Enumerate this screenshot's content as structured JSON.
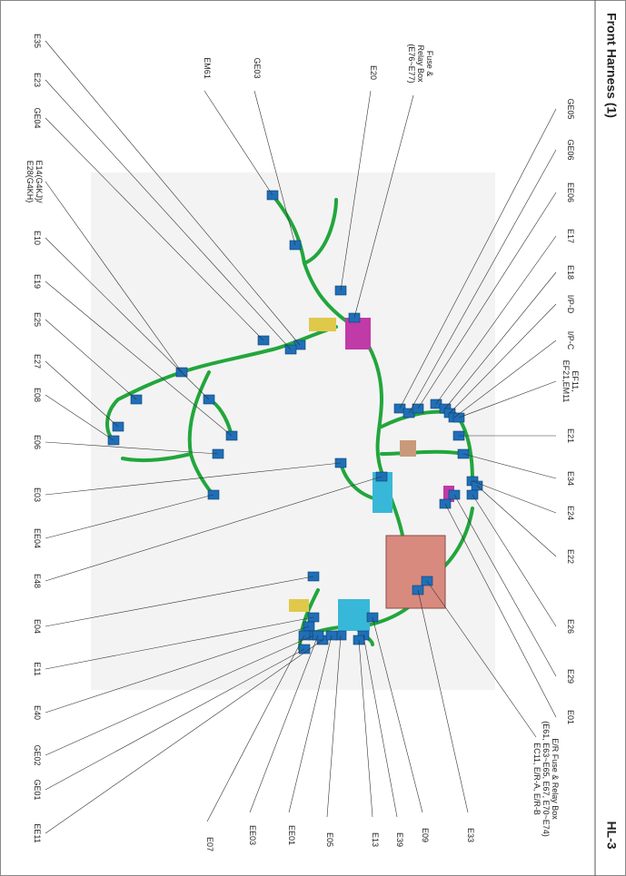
{
  "header": {
    "title": "Front Harness (1)",
    "page": "HL-3"
  },
  "labels": [
    {
      "lines": [
        "E35"
      ]
    },
    {
      "lines": [
        "E23"
      ]
    },
    {
      "lines": [
        "GE04"
      ]
    },
    {
      "lines": [
        "E14(G4KJ)/",
        "E28(G4KH)"
      ]
    },
    {
      "lines": [
        "E10"
      ]
    },
    {
      "lines": [
        "E19"
      ]
    },
    {
      "lines": [
        "E25"
      ]
    },
    {
      "lines": [
        "E27"
      ]
    },
    {
      "lines": [
        "E08"
      ]
    },
    {
      "lines": [
        "E06"
      ]
    },
    {
      "lines": [
        "E03"
      ]
    },
    {
      "lines": [
        "EE04"
      ]
    },
    {
      "lines": [
        "E48"
      ]
    },
    {
      "lines": [
        "E04"
      ]
    },
    {
      "lines": [
        "E11"
      ]
    },
    {
      "lines": [
        "E40"
      ]
    },
    {
      "lines": [
        "GE02"
      ]
    },
    {
      "lines": [
        "GE01"
      ]
    },
    {
      "lines": [
        "EE11"
      ]
    },
    {
      "lines": [
        "EM61"
      ]
    },
    {
      "lines": [
        "GE03"
      ]
    },
    {
      "lines": [
        "E20"
      ]
    },
    {
      "lines": [
        "Fuse &",
        "Relay Box",
        "(E76~E77)"
      ]
    },
    {
      "lines": [
        "GE05"
      ]
    },
    {
      "lines": [
        "GE06"
      ]
    },
    {
      "lines": [
        "EE06"
      ]
    },
    {
      "lines": [
        "E17"
      ]
    },
    {
      "lines": [
        "E18"
      ]
    },
    {
      "lines": [
        "I/P-D"
      ]
    },
    {
      "lines": [
        "I/P-C"
      ]
    },
    {
      "lines": [
        "EF11,",
        "EF21,EM11"
      ]
    },
    {
      "lines": [
        "E21"
      ]
    },
    {
      "lines": [
        "E34"
      ]
    },
    {
      "lines": [
        "E24"
      ]
    },
    {
      "lines": [
        "E22"
      ]
    },
    {
      "lines": [
        "E26"
      ]
    },
    {
      "lines": [
        "E29"
      ]
    },
    {
      "lines": [
        "E01"
      ]
    },
    {
      "lines": [
        "E/R Fuse & Relay Box",
        "(E61, E63~E65, E67, E70~E74)",
        "EC11, E/R-A, E/R-B"
      ]
    },
    {
      "lines": [
        "E33"
      ]
    },
    {
      "lines": [
        "E09"
      ]
    },
    {
      "lines": [
        "E39"
      ]
    },
    {
      "lines": [
        "E13"
      ]
    },
    {
      "lines": [
        "E05"
      ]
    },
    {
      "lines": [
        "EE01"
      ]
    },
    {
      "lines": [
        "EE03"
      ]
    },
    {
      "lines": [
        "E07"
      ]
    }
  ]
}
